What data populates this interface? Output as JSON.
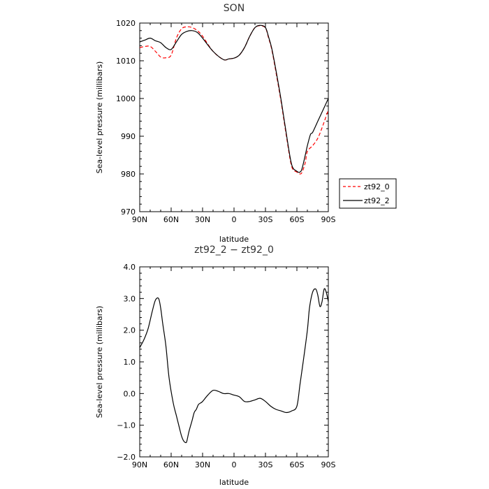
{
  "chart_data": [
    {
      "type": "line",
      "title": "SON",
      "xlabel": "latitude",
      "ylabel": "Sea-level pressure (millibars)",
      "xlim": [
        90,
        -90
      ],
      "ylim": [
        970,
        1020
      ],
      "x_ticks": [
        90,
        60,
        30,
        0,
        -30,
        -60,
        -90
      ],
      "x_tick_labels": [
        "90N",
        "60N",
        "30N",
        "0",
        "30S",
        "60S",
        "90S"
      ],
      "y_ticks": [
        970,
        980,
        990,
        1000,
        1010,
        1020
      ],
      "y_tick_labels": [
        "970",
        "980",
        "990",
        "1000",
        "1010",
        "1020"
      ],
      "legend": {
        "position": "right-outside"
      },
      "series": [
        {
          "name": "zt92_0",
          "color": "#ff0000",
          "dash": "dashed",
          "x": [
            90,
            85,
            80,
            75,
            70,
            65,
            60,
            55,
            50,
            45,
            40,
            35,
            30,
            20,
            10,
            5,
            0,
            -5,
            -10,
            -15,
            -20,
            -25,
            -30,
            -33,
            -36,
            -40,
            -45,
            -50,
            -55,
            -60,
            -63,
            -65,
            -68,
            -70,
            -75,
            -80,
            -85,
            -90
          ],
          "y": [
            1013.5,
            1013.8,
            1013.8,
            1012.5,
            1011.0,
            1010.8,
            1011.5,
            1016.0,
            1018.5,
            1019.0,
            1018.8,
            1018.0,
            1016.5,
            1012.5,
            1010.3,
            1010.5,
            1010.7,
            1011.5,
            1013.5,
            1016.5,
            1018.8,
            1019.3,
            1018.7,
            1016.0,
            1013.0,
            1007.0,
            999.0,
            990.0,
            982.0,
            980.5,
            980.0,
            980.5,
            983.0,
            986.0,
            987.5,
            989.5,
            993.0,
            997.0
          ]
        },
        {
          "name": "zt92_2",
          "color": "#000000",
          "dash": "solid",
          "x": [
            90,
            85,
            80,
            75,
            70,
            65,
            60,
            55,
            50,
            45,
            40,
            35,
            30,
            20,
            10,
            5,
            0,
            -5,
            -10,
            -15,
            -20,
            -25,
            -30,
            -33,
            -36,
            -40,
            -45,
            -50,
            -55,
            -60,
            -63,
            -65,
            -68,
            -70,
            -73,
            -75,
            -80,
            -85,
            -90
          ],
          "y": [
            1015.0,
            1015.5,
            1016.0,
            1015.3,
            1014.8,
            1013.5,
            1013.0,
            1015.0,
            1017.0,
            1017.8,
            1018.0,
            1017.5,
            1016.0,
            1012.5,
            1010.3,
            1010.5,
            1010.7,
            1011.5,
            1013.5,
            1016.5,
            1018.8,
            1019.4,
            1018.8,
            1016.3,
            1013.3,
            1007.5,
            999.5,
            990.5,
            982.5,
            980.7,
            980.5,
            981.5,
            985.0,
            987.5,
            990.5,
            991.0,
            994.0,
            997.0,
            1000.0
          ]
        }
      ]
    },
    {
      "type": "line",
      "title": "zt92_2 − zt92_0",
      "xlabel": "latitude",
      "ylabel": "Sea-level pressure (millibars)",
      "xlim": [
        90,
        -90
      ],
      "ylim": [
        -2.0,
        4.0
      ],
      "x_ticks": [
        90,
        60,
        30,
        0,
        -30,
        -60,
        -90
      ],
      "x_tick_labels": [
        "90N",
        "60N",
        "30N",
        "0",
        "30S",
        "60S",
        "90S"
      ],
      "y_ticks": [
        -2.0,
        -1.0,
        0.0,
        1.0,
        2.0,
        3.0,
        4.0
      ],
      "y_tick_labels": [
        "−2.0",
        "−1.0",
        "0.0",
        "1.0",
        "2.0",
        "3.0",
        "4.0"
      ],
      "series": [
        {
          "color": "#000000",
          "dash": "solid",
          "x": [
            90,
            86,
            82,
            78,
            75,
            72,
            70,
            68,
            65,
            62,
            58,
            55,
            52,
            50,
            48,
            46,
            45,
            43,
            40,
            38,
            36,
            34,
            32,
            30,
            25,
            20,
            15,
            10,
            5,
            0,
            -5,
            -10,
            -15,
            -20,
            -25,
            -30,
            -35,
            -40,
            -45,
            -50,
            -55,
            -60,
            -63,
            -66,
            -70,
            -72,
            -75,
            -78,
            -80,
            -82,
            -84,
            -86,
            -88,
            -90
          ],
          "y": [
            1.45,
            1.7,
            2.05,
            2.6,
            2.95,
            3.0,
            2.7,
            2.2,
            1.5,
            0.5,
            -0.3,
            -0.7,
            -1.1,
            -1.35,
            -1.5,
            -1.55,
            -1.5,
            -1.2,
            -0.85,
            -0.6,
            -0.5,
            -0.35,
            -0.3,
            -0.25,
            -0.05,
            0.1,
            0.07,
            0.0,
            0.0,
            -0.05,
            -0.1,
            -0.25,
            -0.25,
            -0.2,
            -0.15,
            -0.25,
            -0.4,
            -0.5,
            -0.55,
            -0.6,
            -0.55,
            -0.4,
            0.3,
            1.0,
            2.0,
            2.7,
            3.2,
            3.3,
            3.1,
            2.75,
            2.9,
            3.3,
            3.2,
            2.9
          ]
        }
      ]
    }
  ]
}
